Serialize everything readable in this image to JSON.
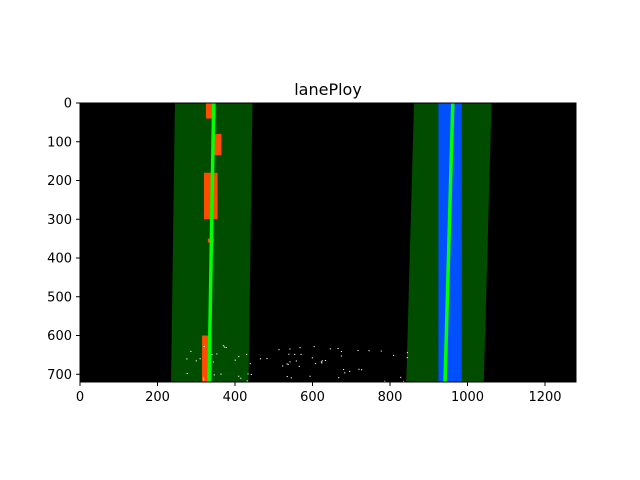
{
  "chart_data": {
    "type": "image",
    "title": "lanePloy",
    "xlim": [
      0,
      1280
    ],
    "ylim": [
      720,
      0
    ],
    "xticks": [
      0,
      200,
      400,
      600,
      800,
      1000,
      1200
    ],
    "yticks": [
      0,
      100,
      200,
      300,
      400,
      500,
      600,
      700
    ],
    "xtick_labels": [
      "0",
      "200",
      "400",
      "600",
      "800",
      "1000",
      "1200"
    ],
    "ytick_labels": [
      "0",
      "100",
      "200",
      "300",
      "400",
      "500",
      "600",
      "700"
    ],
    "background_color": "#000000",
    "window_color": "#004d00",
    "fit_line_color": "#00ff00",
    "left_pixel_color": "#ff4c00",
    "right_pixel_color": "#0050ff",
    "noise_color": "#ffffff",
    "lanes": [
      {
        "name": "left",
        "fit_x_top": 345,
        "fit_x_bottom": 333,
        "window_left_x_top": 245,
        "window_left_x_bottom": 235,
        "window_right_x_top": 445,
        "window_right_x_bottom": 435,
        "pixel_segments": [
          {
            "x": [
              325,
              350
            ],
            "y": [
              0,
              40
            ]
          },
          {
            "x": [
              340,
              365
            ],
            "y": [
              80,
              135
            ]
          },
          {
            "x": [
              320,
              355
            ],
            "y": [
              180,
              300
            ]
          },
          {
            "x": [
              330,
              345
            ],
            "y": [
              350,
              360
            ]
          },
          {
            "x": [
              315,
              340
            ],
            "y": [
              600,
              720
            ]
          }
        ]
      },
      {
        "name": "right",
        "fit_x_top": 962,
        "fit_x_bottom": 942,
        "window_left_x_top": 862,
        "window_left_x_bottom": 842,
        "window_right_x_top": 1062,
        "window_right_x_bottom": 1042,
        "pixel_segments": [
          {
            "x": [
              925,
              985
            ],
            "y": [
              0,
              720
            ]
          }
        ]
      }
    ]
  }
}
